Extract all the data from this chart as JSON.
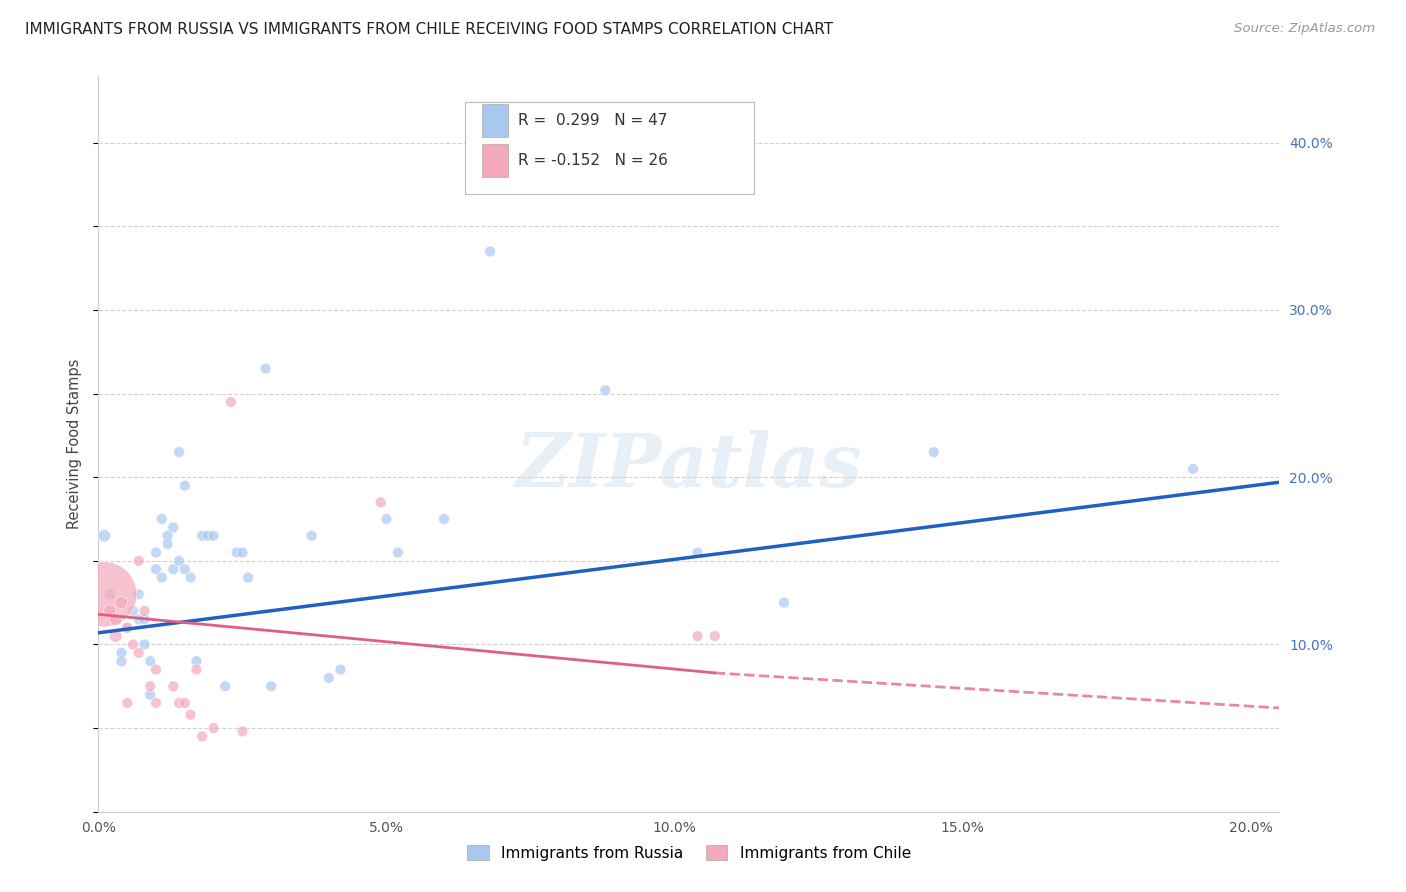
{
  "title": "IMMIGRANTS FROM RUSSIA VS IMMIGRANTS FROM CHILE RECEIVING FOOD STAMPS CORRELATION CHART",
  "source": "Source: ZipAtlas.com",
  "ylabel": "Receiving Food Stamps",
  "xlabel_ticks": [
    "0.0%",
    "",
    "5.0%",
    "",
    "10.0%",
    "",
    "15.0%",
    "",
    "20.0%"
  ],
  "xlabel_vals": [
    0.0,
    0.025,
    0.05,
    0.075,
    0.1,
    0.125,
    0.15,
    0.175,
    0.2
  ],
  "ylabel_ticks": [
    "10.0%",
    "20.0%",
    "30.0%",
    "40.0%"
  ],
  "ylabel_vals": [
    0.1,
    0.2,
    0.3,
    0.4
  ],
  "xlim": [
    0.0,
    0.205
  ],
  "ylim": [
    0.0,
    0.44
  ],
  "russia_R": 0.299,
  "russia_N": 47,
  "chile_R": -0.152,
  "chile_N": 26,
  "russia_color": "#A8C8F0",
  "chile_color": "#F4A8BC",
  "russia_line_color": "#2060C0",
  "chile_line_color": "#E06080",
  "legend_label_russia": "Immigrants from Russia",
  "legend_label_chile": "Immigrants from Chile",
  "watermark": "ZIPatlas",
  "background_color": "#FFFFFF",
  "grid_color": "#CCCCCC",
  "russia_scatter": [
    [
      0.001,
      0.165
    ],
    [
      0.004,
      0.095
    ],
    [
      0.004,
      0.09
    ],
    [
      0.005,
      0.11
    ],
    [
      0.006,
      0.12
    ],
    [
      0.007,
      0.13
    ],
    [
      0.007,
      0.115
    ],
    [
      0.008,
      0.115
    ],
    [
      0.008,
      0.1
    ],
    [
      0.009,
      0.09
    ],
    [
      0.009,
      0.07
    ],
    [
      0.01,
      0.155
    ],
    [
      0.01,
      0.145
    ],
    [
      0.011,
      0.175
    ],
    [
      0.011,
      0.14
    ],
    [
      0.012,
      0.165
    ],
    [
      0.012,
      0.16
    ],
    [
      0.013,
      0.17
    ],
    [
      0.013,
      0.145
    ],
    [
      0.014,
      0.15
    ],
    [
      0.014,
      0.215
    ],
    [
      0.015,
      0.195
    ],
    [
      0.015,
      0.145
    ],
    [
      0.016,
      0.14
    ],
    [
      0.017,
      0.09
    ],
    [
      0.018,
      0.165
    ],
    [
      0.019,
      0.165
    ],
    [
      0.02,
      0.165
    ],
    [
      0.022,
      0.075
    ],
    [
      0.024,
      0.155
    ],
    [
      0.025,
      0.155
    ],
    [
      0.026,
      0.14
    ],
    [
      0.029,
      0.265
    ],
    [
      0.03,
      0.075
    ],
    [
      0.037,
      0.165
    ],
    [
      0.04,
      0.08
    ],
    [
      0.042,
      0.085
    ],
    [
      0.05,
      0.175
    ],
    [
      0.052,
      0.155
    ],
    [
      0.06,
      0.175
    ],
    [
      0.068,
      0.335
    ],
    [
      0.088,
      0.252
    ],
    [
      0.104,
      0.155
    ],
    [
      0.119,
      0.125
    ],
    [
      0.145,
      0.215
    ],
    [
      0.19,
      0.205
    ],
    [
      0.002,
      0.13
    ]
  ],
  "russia_sizes": [
    80,
    60,
    60,
    60,
    60,
    60,
    60,
    60,
    60,
    60,
    60,
    60,
    60,
    60,
    60,
    60,
    60,
    60,
    60,
    60,
    60,
    60,
    60,
    60,
    60,
    60,
    60,
    60,
    60,
    60,
    60,
    60,
    60,
    60,
    60,
    60,
    60,
    60,
    60,
    60,
    60,
    60,
    60,
    60,
    60,
    60,
    60
  ],
  "chile_scatter": [
    [
      0.001,
      0.13
    ],
    [
      0.002,
      0.12
    ],
    [
      0.003,
      0.115
    ],
    [
      0.003,
      0.105
    ],
    [
      0.004,
      0.125
    ],
    [
      0.005,
      0.11
    ],
    [
      0.005,
      0.065
    ],
    [
      0.006,
      0.1
    ],
    [
      0.007,
      0.095
    ],
    [
      0.007,
      0.15
    ],
    [
      0.008,
      0.12
    ],
    [
      0.009,
      0.075
    ],
    [
      0.01,
      0.085
    ],
    [
      0.01,
      0.065
    ],
    [
      0.013,
      0.075
    ],
    [
      0.014,
      0.065
    ],
    [
      0.015,
      0.065
    ],
    [
      0.016,
      0.058
    ],
    [
      0.017,
      0.085
    ],
    [
      0.018,
      0.045
    ],
    [
      0.02,
      0.05
    ],
    [
      0.023,
      0.245
    ],
    [
      0.025,
      0.048
    ],
    [
      0.049,
      0.185
    ],
    [
      0.104,
      0.105
    ],
    [
      0.107,
      0.105
    ]
  ],
  "chile_sizes": [
    2200,
    80,
    80,
    80,
    80,
    60,
    60,
    60,
    60,
    60,
    60,
    60,
    60,
    60,
    60,
    60,
    60,
    60,
    60,
    60,
    60,
    60,
    60,
    60,
    60,
    60
  ],
  "russia_line": [
    0.0,
    0.205,
    0.107,
    0.197
  ],
  "chile_line_solid": [
    0.0,
    0.107,
    0.118,
    0.083
  ],
  "chile_line_dashed": [
    0.107,
    0.205,
    0.083,
    0.062
  ]
}
